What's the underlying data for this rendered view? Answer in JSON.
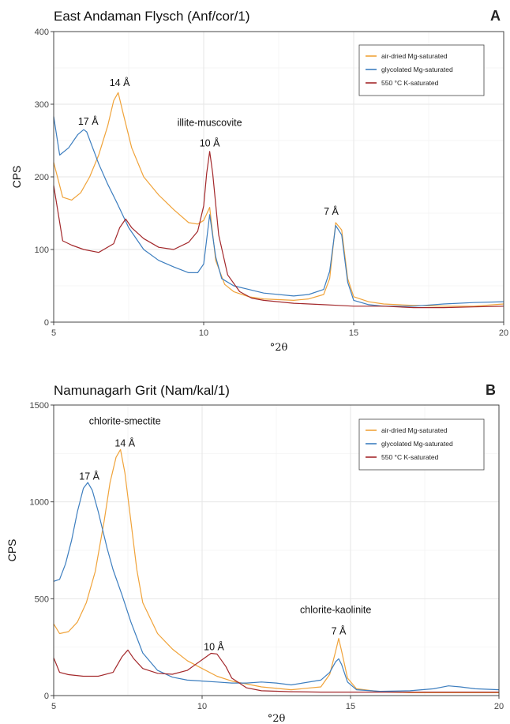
{
  "colors": {
    "air": "#f0a33a",
    "gly": "#3d7ebf",
    "k550": "#a3282b"
  },
  "chart_data": [
    {
      "type": "line",
      "panel": "A",
      "title": "East Andaman Flysch (Anf/cor/1)",
      "xlabel": "°2θ",
      "ylabel": "CPS",
      "xlim": [
        5,
        20
      ],
      "ylim": [
        0,
        400
      ],
      "xticks": [
        5,
        10,
        15,
        20
      ],
      "yticks": [
        0,
        100,
        200,
        300,
        400
      ],
      "grid": true,
      "legend_position": "top-right",
      "series": [
        {
          "name": "air-dried Mg-saturated",
          "color_key": "air",
          "x": [
            5,
            5.3,
            5.6,
            5.9,
            6.2,
            6.5,
            6.8,
            7.0,
            7.15,
            7.3,
            7.6,
            8.0,
            8.5,
            9.0,
            9.5,
            9.8,
            10.0,
            10.2,
            10.4,
            10.7,
            11.0,
            11.5,
            12.0,
            13.0,
            13.5,
            14.0,
            14.2,
            14.4,
            14.6,
            14.8,
            15.0,
            15.5,
            16,
            17,
            18,
            19,
            20
          ],
          "y": [
            220,
            172,
            168,
            178,
            200,
            230,
            270,
            305,
            316,
            290,
            240,
            200,
            175,
            155,
            137,
            135,
            140,
            158,
            85,
            52,
            42,
            35,
            32,
            30,
            32,
            38,
            60,
            137,
            127,
            60,
            35,
            28,
            25,
            23,
            22,
            22,
            25
          ]
        },
        {
          "name": "glycolated Mg-saturated",
          "color_key": "gly",
          "x": [
            5,
            5.2,
            5.5,
            5.8,
            6.0,
            6.1,
            6.3,
            6.5,
            6.8,
            7.1,
            7.5,
            8.0,
            8.5,
            9.0,
            9.5,
            9.8,
            10.0,
            10.2,
            10.4,
            10.6,
            11.0,
            11.5,
            12.0,
            13.0,
            13.5,
            14.0,
            14.2,
            14.4,
            14.6,
            14.8,
            15.0,
            15.5,
            16,
            17,
            18,
            19,
            20
          ],
          "y": [
            283,
            230,
            240,
            258,
            265,
            262,
            240,
            218,
            190,
            165,
            130,
            100,
            85,
            76,
            68,
            68,
            80,
            148,
            90,
            60,
            50,
            45,
            40,
            36,
            38,
            45,
            70,
            133,
            120,
            55,
            30,
            24,
            22,
            22,
            25,
            27,
            28
          ]
        },
        {
          "name": "550 °C K-saturated",
          "color_key": "k550",
          "x": [
            5,
            5.3,
            5.6,
            6.0,
            6.5,
            7.0,
            7.2,
            7.4,
            7.6,
            8.0,
            8.5,
            9.0,
            9.5,
            9.8,
            10.0,
            10.1,
            10.2,
            10.3,
            10.5,
            10.8,
            11.2,
            11.6,
            12.0,
            13.0,
            14.0,
            14.5,
            15.0,
            16,
            17,
            18,
            19,
            20
          ],
          "y": [
            188,
            112,
            106,
            100,
            96,
            108,
            130,
            142,
            130,
            115,
            103,
            100,
            110,
            125,
            160,
            205,
            235,
            205,
            120,
            65,
            42,
            33,
            30,
            26,
            24,
            23,
            22,
            22,
            20,
            20,
            21,
            22
          ]
        }
      ],
      "annotations": [
        {
          "text": "14 Å",
          "x": 7.2,
          "y": 325
        },
        {
          "text": "17 Å",
          "x": 6.15,
          "y": 272
        },
        {
          "text": "illite-muscovite",
          "x": 10.2,
          "y": 270
        },
        {
          "text": "10 Å",
          "x": 10.2,
          "y": 242
        },
        {
          "text": "7 Å",
          "x": 14.25,
          "y": 148
        }
      ]
    },
    {
      "type": "line",
      "panel": "B",
      "title": "Namunagarh Grit (Nam/kal/1)",
      "xlabel": "°2θ",
      "ylabel": "CPS",
      "xlim": [
        5,
        20
      ],
      "ylim": [
        0,
        1500
      ],
      "xticks": [
        5,
        10,
        15,
        20
      ],
      "yticks": [
        0,
        500,
        1000,
        1500
      ],
      "grid": true,
      "legend_position": "top-right",
      "series": [
        {
          "name": "air-dried Mg-saturated",
          "color_key": "air",
          "x": [
            5,
            5.2,
            5.5,
            5.8,
            6.1,
            6.4,
            6.7,
            6.9,
            7.1,
            7.25,
            7.4,
            7.6,
            7.8,
            8.0,
            8.5,
            9.0,
            9.5,
            10.0,
            10.5,
            11.0,
            12.0,
            13.0,
            14.0,
            14.3,
            14.5,
            14.6,
            14.7,
            14.9,
            15.2,
            16,
            17,
            18,
            19,
            20
          ],
          "y": [
            370,
            320,
            330,
            380,
            480,
            640,
            900,
            1100,
            1230,
            1270,
            1150,
            900,
            650,
            480,
            320,
            240,
            180,
            140,
            100,
            75,
            45,
            30,
            45,
            110,
            230,
            295,
            230,
            90,
            35,
            20,
            15,
            15,
            15,
            15
          ]
        },
        {
          "name": "glycolated Mg-saturated",
          "color_key": "gly",
          "x": [
            5,
            5.2,
            5.4,
            5.6,
            5.8,
            6.0,
            6.15,
            6.3,
            6.5,
            6.8,
            7.0,
            7.3,
            7.6,
            8.0,
            8.5,
            9.0,
            9.5,
            10.0,
            10.5,
            11.0,
            11.5,
            12.0,
            12.5,
            13.0,
            14.0,
            14.3,
            14.5,
            14.6,
            14.7,
            14.9,
            15.2,
            16,
            17,
            17.8,
            18.3,
            18.7,
            19.2,
            20
          ],
          "y": [
            590,
            600,
            680,
            800,
            950,
            1070,
            1100,
            1060,
            950,
            760,
            650,
            520,
            380,
            220,
            130,
            95,
            80,
            75,
            70,
            65,
            65,
            70,
            65,
            55,
            80,
            120,
            175,
            190,
            160,
            70,
            30,
            22,
            25,
            35,
            50,
            45,
            35,
            30
          ]
        },
        {
          "name": "550 °C K-saturated",
          "color_key": "k550",
          "x": [
            5,
            5.2,
            5.5,
            6.0,
            6.5,
            7.0,
            7.3,
            7.5,
            7.7,
            8.0,
            8.5,
            9.0,
            9.5,
            10.0,
            10.3,
            10.5,
            10.8,
            11.0,
            11.5,
            12.0,
            13.0,
            14.0,
            15.0,
            16,
            17,
            18,
            19,
            20
          ],
          "y": [
            195,
            120,
            108,
            100,
            100,
            120,
            200,
            235,
            190,
            140,
            115,
            110,
            130,
            185,
            218,
            215,
            150,
            90,
            40,
            25,
            20,
            18,
            18,
            18,
            18,
            18,
            18,
            18
          ]
        }
      ],
      "annotations": [
        {
          "text": "chlorite-smectite",
          "x": 7.4,
          "y": 1400
        },
        {
          "text": "14 Å",
          "x": 7.4,
          "y": 1285
        },
        {
          "text": "17 Å",
          "x": 6.2,
          "y": 1115
        },
        {
          "text": "10 Å",
          "x": 10.4,
          "y": 235
        },
        {
          "text": "chlorite-kaolinite",
          "x": 14.5,
          "y": 425
        },
        {
          "text": "7 Å",
          "x": 14.6,
          "y": 315
        }
      ]
    }
  ]
}
